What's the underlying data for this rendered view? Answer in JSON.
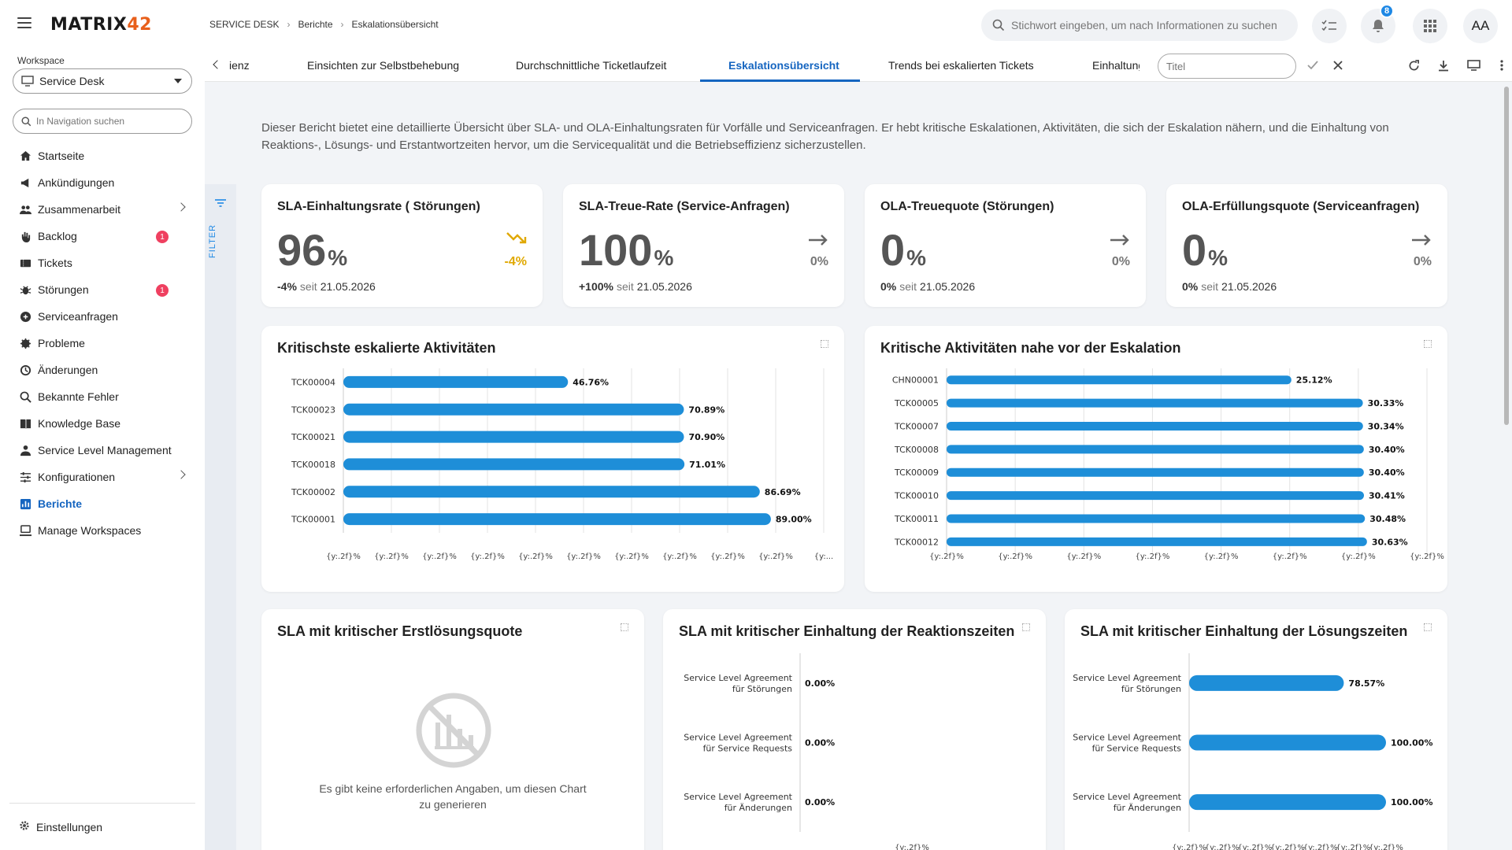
{
  "app": {
    "logo": "MATRIX",
    "logo_num": "42",
    "avatar": "AA",
    "notifications_count": "8"
  },
  "breadcrumb": [
    "SERVICE DESK",
    "Berichte",
    "Eskalationsübersicht"
  ],
  "search": {
    "placeholder": "Stichwort eingeben, um nach Informationen zu suchen"
  },
  "sidebar": {
    "workspace_label": "Workspace",
    "workspace_value": "Service Desk",
    "nav_search_placeholder": "In Navigation suchen",
    "items": [
      {
        "label": "Startseite",
        "icon": "home-icon"
      },
      {
        "label": "Ankündigungen",
        "icon": "megaphone-icon"
      },
      {
        "label": "Zusammenarbeit",
        "icon": "people-icon",
        "chevron": true
      },
      {
        "label": "Backlog",
        "icon": "hand-icon",
        "count": "1"
      },
      {
        "label": "Tickets",
        "icon": "ticket-icon"
      },
      {
        "label": "Störungen",
        "icon": "bug-icon",
        "count": "1"
      },
      {
        "label": "Serviceanfragen",
        "icon": "request-icon"
      },
      {
        "label": "Probleme",
        "icon": "problem-icon"
      },
      {
        "label": "Änderungen",
        "icon": "change-icon"
      },
      {
        "label": "Bekannte Fehler",
        "icon": "search-error-icon"
      },
      {
        "label": "Knowledge Base",
        "icon": "book-icon"
      },
      {
        "label": "Service Level Management",
        "icon": "sla-icon"
      },
      {
        "label": "Konfigurationen",
        "icon": "sliders-icon",
        "chevron": true
      },
      {
        "label": "Berichte",
        "icon": "chart-icon",
        "active": true
      },
      {
        "label": "Manage Workspaces",
        "icon": "workspace-icon"
      }
    ],
    "settings_label": "Einstellungen"
  },
  "tabs": [
    {
      "label": "ienz"
    },
    {
      "label": "Einsichten zur Selbstbehebung"
    },
    {
      "label": "Durchschnittliche Ticketlaufzeit"
    },
    {
      "label": "Eskalationsübersicht",
      "active": true
    },
    {
      "label": "Trends bei eskalierten Tickets"
    },
    {
      "label": "Einhaltung"
    }
  ],
  "title_input_placeholder": "Titel",
  "filter_label": "FILTER",
  "intro": "Dieser Bericht bietet eine detaillierte Übersicht über SLA- und OLA-Einhaltungsraten für Vorfälle und Serviceanfragen. Er hebt kritische Eskalationen, Aktivitäten, die sich der Eskalation nähern, und die Einhaltung von Reaktions-, Lösungs- und Erstantwortzeiten hervor, um die Servicequalität und die Betriebseffizienz sicherzustellen.",
  "kpis": [
    {
      "title": "SLA-Einhaltungsrate ( Störungen)",
      "value": "96",
      "unit": "%",
      "trend": "-4%",
      "trend_dir": "down",
      "delta": "-4%",
      "since": "seit",
      "date": "21.05.2026"
    },
    {
      "title": "SLA-Treue-Rate (Service-Anfragen)",
      "value": "100",
      "unit": "%",
      "trend": "0%",
      "trend_dir": "flat",
      "delta": "+100%",
      "since": "seit",
      "date": "21.05.2026"
    },
    {
      "title": "OLA-Treuequote (Störungen)",
      "value": "0",
      "unit": "%",
      "trend": "0%",
      "trend_dir": "flat",
      "delta": "0%",
      "since": "seit",
      "date": "21.05.2026"
    },
    {
      "title": "OLA-Erfüllungsquote (Serviceanfragen)",
      "value": "0",
      "unit": "%",
      "trend": "0%",
      "trend_dir": "flat",
      "delta": "0%",
      "since": "seit",
      "date": "21.05.2026"
    }
  ],
  "empty_chart": {
    "title": "SLA mit kritischer Erstlösungsquote",
    "message_line1": "Es gibt keine erforderlichen Angaben, um diesen Chart",
    "message_line2": "zu generieren"
  },
  "colors": {
    "accent": "#1565c0",
    "bar": "#1e8ed8",
    "negative_trend": "#e0a800",
    "badge": "#ef4060"
  },
  "chart_data": [
    {
      "type": "bar",
      "orientation": "horizontal",
      "title": "Kritischste eskalierte Aktivitäten",
      "categories": [
        "TCK00004",
        "TCK00023",
        "TCK00021",
        "TCK00018",
        "TCK00002",
        "TCK00001"
      ],
      "values": [
        46.76,
        70.89,
        70.9,
        71.01,
        86.69,
        89.0
      ],
      "labels": [
        "46.76%",
        "70.89%",
        "70.90%",
        "71.01%",
        "86.69%",
        "89.00%"
      ],
      "xlim": [
        0,
        100
      ],
      "ticks": [
        "{y:.2f}%",
        "{y:.2f}%",
        "{y:.2f}%",
        "{y:.2f}%",
        "{y:.2f}%",
        "{y:.2f}%",
        "{y:.2f}%",
        "{y:.2f}%",
        "{y:.2f}%",
        "{y:.2f}%",
        "{y:..."
      ],
      "grid": true
    },
    {
      "type": "bar",
      "orientation": "horizontal",
      "title": "Kritische Aktivitäten nahe vor der Eskalation",
      "categories": [
        "CHN00001",
        "TCK00005",
        "TCK00007",
        "TCK00008",
        "TCK00009",
        "TCK00010",
        "TCK00011",
        "TCK00012"
      ],
      "values": [
        25.12,
        30.33,
        30.34,
        30.4,
        30.4,
        30.41,
        30.48,
        30.63
      ],
      "labels": [
        "25.12%",
        "30.33%",
        "30.34%",
        "30.40%",
        "30.40%",
        "30.41%",
        "30.48%",
        "30.63%"
      ],
      "xlim": [
        0,
        35
      ],
      "ticks": [
        "{y:.2f}%",
        "{y:.2f}%",
        "{y:.2f}%",
        "{y:.2f}%",
        "{y:.2f}%",
        "{y:.2f}%",
        "{y:.2f}%",
        "{y:.2f}%"
      ],
      "grid": true
    },
    {
      "type": "bar",
      "orientation": "horizontal",
      "title": "SLA mit kritischer Einhaltung der Reaktionszeiten",
      "categories": [
        [
          "Service Level Agreement",
          "für Störungen"
        ],
        [
          "Service Level Agreement",
          "für Service Requests"
        ],
        [
          "Service Level Agreement",
          "für Änderungen"
        ]
      ],
      "values": [
        0,
        0,
        0
      ],
      "labels": [
        "0.00%",
        "0.00%",
        "0.00%"
      ],
      "xlim": [
        0,
        100
      ],
      "ticks": [
        "{y:.2f}%"
      ],
      "grid": false
    },
    {
      "type": "bar",
      "orientation": "horizontal",
      "title": "SLA mit kritischer Einhaltung der Lösungszeiten",
      "categories": [
        [
          "Service Level Agreement",
          "für Störungen"
        ],
        [
          "Service Level Agreement",
          "für Service Requests"
        ],
        [
          "Service Level Agreement",
          "für Änderungen"
        ]
      ],
      "values": [
        78.57,
        100.0,
        100.0
      ],
      "labels": [
        "78.57%",
        "100.00%",
        "100.00%"
      ],
      "xlim": [
        0,
        100
      ],
      "ticks": [
        "{y:.2f}%",
        "{y:.2f}%",
        "{y:.2f}%",
        "{y:.2f}%",
        "{y:.2f}%",
        "{y:.2f}%",
        "{y:.2f}%"
      ],
      "grid": false
    }
  ]
}
